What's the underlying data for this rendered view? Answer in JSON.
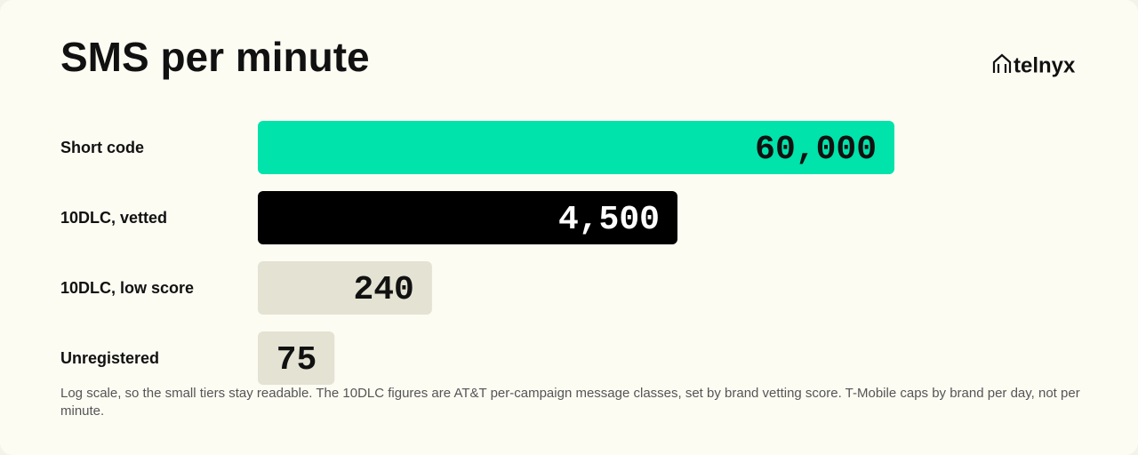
{
  "chart_data": {
    "type": "bar",
    "orientation": "horizontal",
    "title": "SMS per minute",
    "brand": "telnyx",
    "categories": [
      "Short code",
      "10DLC, vetted",
      "10DLC, low score",
      "Unregistered"
    ],
    "values": [
      60000,
      4500,
      240,
      75
    ],
    "value_labels": [
      "60,000",
      "4,500",
      "240",
      "75"
    ],
    "colors": [
      "#00e3aa",
      "#000000",
      "#e4e2d2",
      "#e4e2d2"
    ],
    "log_scale": true,
    "xlim": [
      30,
      60000
    ],
    "note": "Log scale, so the small tiers stay readable. The 10DLC figures are AT&T per-campaign message classes, set by brand vetting score. T-Mobile caps by brand per day, not per minute."
  }
}
